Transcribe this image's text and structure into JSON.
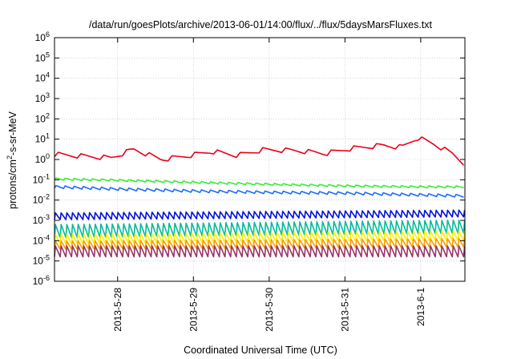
{
  "chart_data": {
    "type": "line",
    "title": "/data/run/goesPlots/archive/2013-06-01/14:00/flux/../flux/5daysMarsFluxes.txt",
    "xlabel": "Coordinated Universal Time (UTC)",
    "ylabel": "protons/cm2-s-sr-MeV",
    "ylabel_parts": {
      "base": "protons/cm",
      "sup": "2",
      "rest": "-s-sr-MeV"
    },
    "y_scale": "log",
    "ylim": [
      1e-06,
      1000000.0
    ],
    "y_ticks": [
      {
        "base": "10",
        "exp": "6",
        "value": 1000000.0
      },
      {
        "base": "10",
        "exp": "5",
        "value": 100000.0
      },
      {
        "base": "10",
        "exp": "4",
        "value": 10000.0
      },
      {
        "base": "10",
        "exp": "3",
        "value": 1000.0
      },
      {
        "base": "10",
        "exp": "2",
        "value": 100.0
      },
      {
        "base": "10",
        "exp": "1",
        "value": 10.0
      },
      {
        "base": "10",
        "exp": "0",
        "value": 1.0
      },
      {
        "base": "10",
        "exp": "-1",
        "value": 0.1
      },
      {
        "base": "10",
        "exp": "-2",
        "value": 0.01
      },
      {
        "base": "10",
        "exp": "-3",
        "value": 0.001
      },
      {
        "base": "10",
        "exp": "-4",
        "value": 0.0001
      },
      {
        "base": "10",
        "exp": "-5",
        "value": 1e-05
      },
      {
        "base": "10",
        "exp": "-6",
        "value": 1e-06
      }
    ],
    "x_unit": "days",
    "xlim": [
      "2013-05-27T04:00",
      "2013-06-01T14:00"
    ],
    "x_ticks": [
      {
        "label": "2013-5-28",
        "value": "2013-05-28T00:00"
      },
      {
        "label": "2013-5-29",
        "value": "2013-05-29T00:00"
      },
      {
        "label": "2013-5-30",
        "value": "2013-05-30T00:00"
      },
      {
        "label": "2013-5-31",
        "value": "2013-05-31T00:00"
      },
      {
        "label": "2013-6-1",
        "value": "2013-06-01T00:00"
      }
    ],
    "grid": true,
    "legend": "none",
    "series": [
      {
        "color": "#e8001a",
        "pattern": "sawtooth",
        "x": [
          "2013-05-27T04:00",
          "2013-05-27T12:00",
          "2013-05-27T22:00",
          "2013-05-28T05:00",
          "2013-05-28T14:00",
          "2013-05-28T22:00",
          "2013-05-29T06:00",
          "2013-05-29T14:00",
          "2013-05-29T22:00",
          "2013-05-30T08:00",
          "2013-05-30T18:00",
          "2013-05-31T02:00",
          "2013-05-31T12:00",
          "2013-05-31T18:00",
          "2013-05-31T23:00",
          "2013-06-01T04:00",
          "2013-06-01T10:00",
          "2013-06-01T14:00"
        ],
        "y": [
          1.8,
          1.5,
          1.2,
          3.2,
          1.0,
          1.5,
          2.5,
          1.6,
          3.0,
          2.8,
          2.0,
          3.5,
          5.0,
          4.0,
          12,
          6.0,
          2.0,
          0.6
        ],
        "amp": 1.7,
        "step": 0.3
      },
      {
        "color": "#33ee33",
        "pattern": "sawtooth",
        "x": [
          "2013-05-27T04:00",
          "2013-05-28T00:00",
          "2013-05-29T00:00",
          "2013-05-30T00:00",
          "2013-05-31T00:00",
          "2013-06-01T00:00",
          "2013-06-01T14:00"
        ],
        "y": [
          0.11,
          0.095,
          0.075,
          0.06,
          0.05,
          0.045,
          0.045
        ],
        "amp": 1.25,
        "step": 0.12
      },
      {
        "color": "#1a6aff",
        "pattern": "sawtooth",
        "x": [
          "2013-05-27T04:00",
          "2013-05-28T00:00",
          "2013-05-29T00:00",
          "2013-05-30T00:00",
          "2013-05-31T00:00",
          "2013-06-01T00:00",
          "2013-06-01T14:00"
        ],
        "y": [
          0.045,
          0.035,
          0.028,
          0.024,
          0.022,
          0.018,
          0.016
        ],
        "amp": 1.35,
        "step": 0.12
      },
      {
        "color": "#0010e0",
        "pattern": "sawtooth",
        "x": [
          "2013-05-27T04:00",
          "2013-06-01T14:00"
        ],
        "y": [
          0.0016,
          0.0022
        ],
        "amp": 2.2,
        "step": 0.075
      },
      {
        "color": "#00bb99",
        "pattern": "sawtooth",
        "x": [
          "2013-05-27T04:00",
          "2013-06-01T14:00"
        ],
        "y": [
          0.0003,
          0.0005
        ],
        "amp": 4.5,
        "step": 0.075
      },
      {
        "color": "#ffee00",
        "pattern": "sawtooth",
        "x": [
          "2013-05-27T04:00",
          "2013-06-01T14:00"
        ],
        "y": [
          0.00012,
          0.00018
        ],
        "amp": 3.0,
        "step": 0.075
      },
      {
        "color": "#ff9900",
        "pattern": "sawtooth",
        "x": [
          "2013-05-27T04:00",
          "2013-06-01T14:00"
        ],
        "y": [
          6e-05,
          8e-05
        ],
        "amp": 2.6,
        "step": 0.075
      },
      {
        "color": "#993366",
        "pattern": "sawtooth",
        "x": [
          "2013-05-27T04:00",
          "2013-06-01T14:00"
        ],
        "y": [
          3e-05,
          3e-05
        ],
        "amp": 3.5,
        "step": 0.075
      }
    ]
  }
}
